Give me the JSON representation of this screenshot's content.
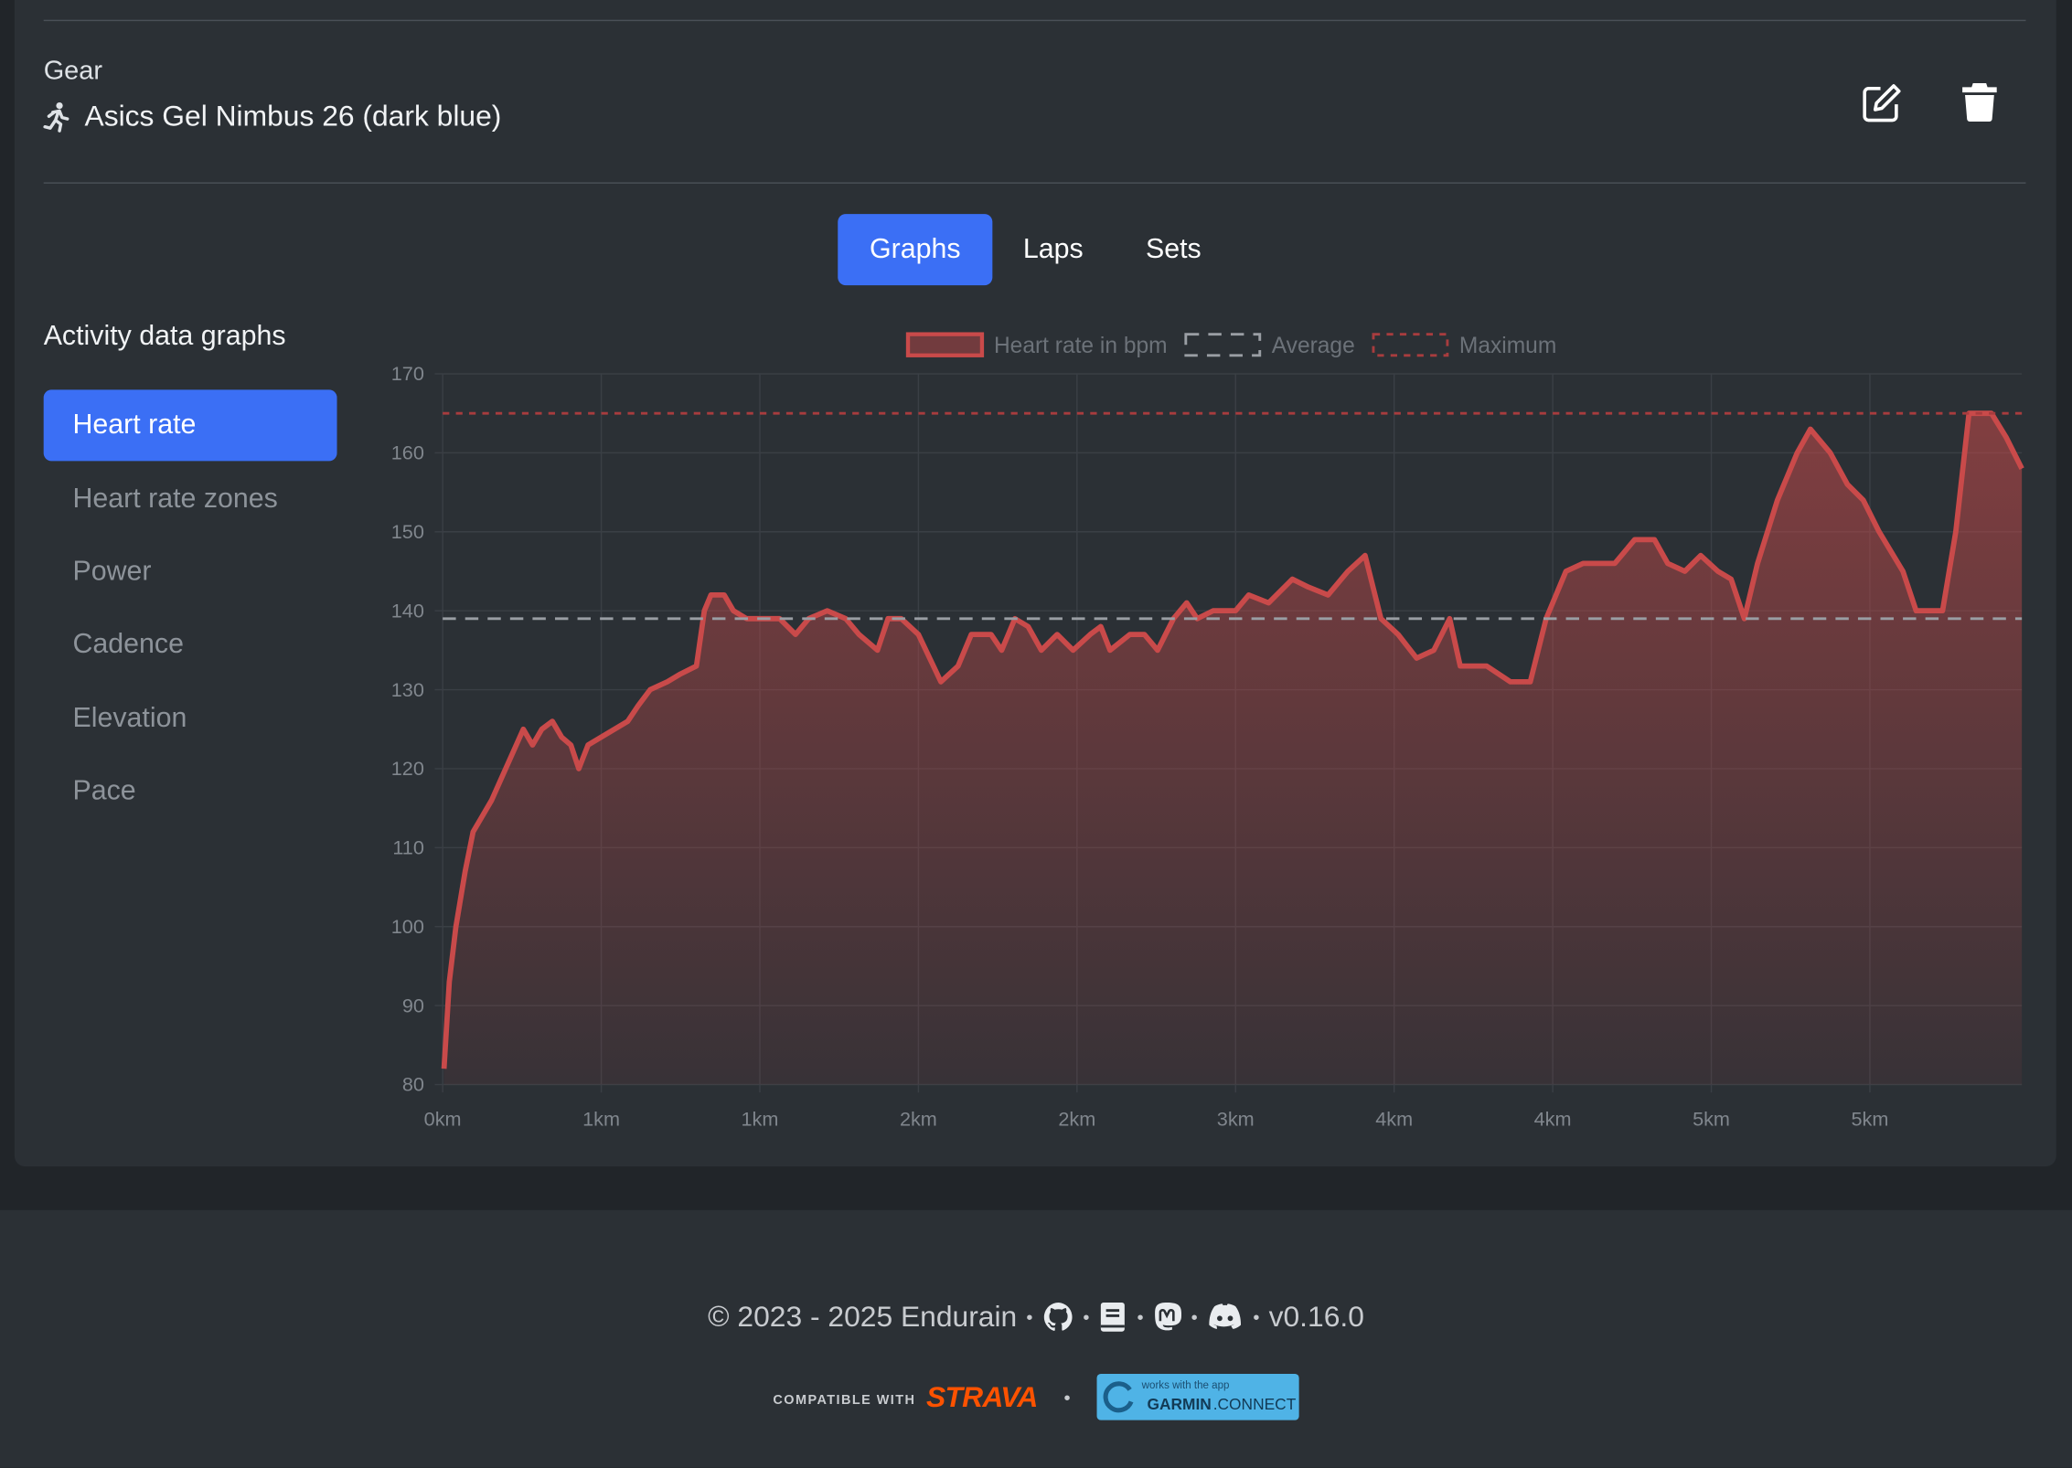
{
  "gear": {
    "label": "Gear",
    "name": "Asics Gel Nimbus 26 (dark blue)"
  },
  "tabs": [
    "Graphs",
    "Laps",
    "Sets"
  ],
  "sidebar": {
    "title": "Activity data graphs",
    "items": [
      "Heart rate",
      "Heart rate zones",
      "Power",
      "Cadence",
      "Elevation",
      "Pace"
    ]
  },
  "chart_data": {
    "type": "line",
    "grid": true,
    "legend": "top",
    "x": [
      0.005,
      0.025,
      0.05,
      0.085,
      0.115,
      0.15,
      0.185,
      0.225,
      0.265,
      0.305,
      0.34,
      0.375,
      0.415,
      0.45,
      0.485,
      0.515,
      0.55,
      0.6,
      0.65,
      0.7,
      0.74,
      0.785,
      0.85,
      0.9,
      0.96,
      0.99,
      1.015,
      1.065,
      1.1,
      1.15,
      1.2,
      1.275,
      1.335,
      1.385,
      1.455,
      1.525,
      1.575,
      1.645,
      1.685,
      1.735,
      1.8,
      1.885,
      1.95,
      2.0,
      2.075,
      2.115,
      2.165,
      2.215,
      2.265,
      2.325,
      2.385,
      2.45,
      2.49,
      2.525,
      2.6,
      2.655,
      2.705,
      2.765,
      2.815,
      2.855,
      2.915,
      3.0,
      3.05,
      3.125,
      3.215,
      3.275,
      3.35,
      3.425,
      3.49,
      3.55,
      3.615,
      3.685,
      3.75,
      3.81,
      3.85,
      3.95,
      4.04,
      4.115,
      4.175,
      4.25,
      4.315,
      4.435,
      4.51,
      4.585,
      4.635,
      4.7,
      4.76,
      4.825,
      4.875,
      4.925,
      4.975,
      5.05,
      5.125,
      5.175,
      5.25,
      5.315,
      5.375,
      5.435,
      5.525,
      5.575,
      5.675,
      5.725,
      5.775,
      5.86,
      5.915,
      5.975
    ],
    "series": [
      {
        "name": "Heart rate in bpm",
        "color": "#c94a4a",
        "values": [
          82,
          93,
          100,
          107,
          112,
          114,
          116,
          119,
          122,
          125,
          123,
          125,
          126,
          124,
          123,
          120,
          123,
          124,
          125,
          126,
          128,
          130,
          131,
          132,
          133,
          140,
          142,
          142,
          140,
          139,
          139,
          139,
          137,
          139,
          140,
          139,
          137,
          135,
          139,
          139,
          137,
          131,
          133,
          137,
          137,
          135,
          139,
          138,
          135,
          137,
          135,
          137,
          138,
          135,
          137,
          137,
          135,
          139,
          141,
          139,
          140,
          140,
          142,
          141,
          144,
          143,
          142,
          145,
          147,
          139,
          137,
          134,
          135,
          139,
          133,
          133,
          131,
          131,
          139,
          145,
          146,
          146,
          149,
          149,
          146,
          145,
          147,
          145,
          144,
          139,
          146,
          154,
          160,
          163,
          160,
          156,
          154,
          150,
          145,
          140,
          140,
          150,
          165,
          165,
          162,
          158
        ]
      }
    ],
    "reference_lines": [
      {
        "name": "Average",
        "value": 139,
        "color": "#9a9ea4"
      },
      {
        "name": "Maximum",
        "value": 165,
        "color": "#a83c3e"
      }
    ],
    "xlim": [
      0,
      5.975
    ],
    "xticks": [
      {
        "value": 0,
        "label": "0km"
      },
      {
        "value": 0.6,
        "label": "1km"
      },
      {
        "value": 1.2,
        "label": "1km"
      },
      {
        "value": 1.8,
        "label": "2km"
      },
      {
        "value": 2.4,
        "label": "2km"
      },
      {
        "value": 3.0,
        "label": "3km"
      },
      {
        "value": 3.6,
        "label": "4km"
      },
      {
        "value": 4.2,
        "label": "4km"
      },
      {
        "value": 4.8,
        "label": "5km"
      },
      {
        "value": 5.4,
        "label": "5km"
      }
    ],
    "ylim": [
      80,
      170
    ],
    "yticks": [
      80,
      90,
      100,
      110,
      120,
      130,
      140,
      150,
      160,
      170
    ]
  },
  "footer": {
    "copyright": "© 2023 - 2025 Endurain",
    "separator": "•",
    "version": "v0.16.0",
    "strava_prefix": "COMPATIBLE WITH",
    "strava": "STRAVA",
    "garmin_prefix": "works with the app",
    "garmin": "GARMIN",
    "garmin_suffix": ".CONNECT"
  }
}
